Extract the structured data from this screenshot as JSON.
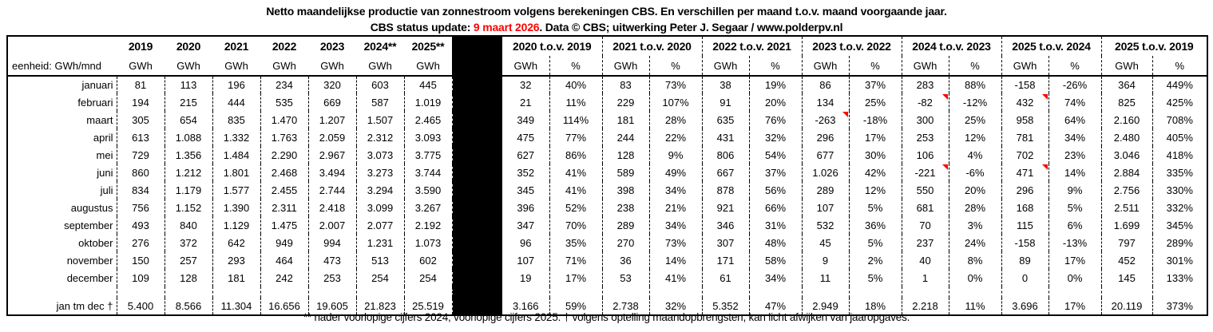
{
  "page": {
    "title_line1": "Netto maandelijkse productie van zonnestroom volgens berekeningen CBS. En verschillen per maand t.o.v. maand voorgaande jaar.",
    "subtitle_prefix": "CBS status update: ",
    "subtitle_date": "9 maart 2026",
    "subtitle_suffix": ". Data © CBS; uitwerking Peter J. Segaar / www.polderpv.nl",
    "footnote": "** nader voorlopige cijfers 2024, voorlopige cijfers 2025.  † volgens optelling maandopbrengsten, kan licht afwijken van jaaropgaves."
  },
  "colors": {
    "text": "#000000",
    "accent_red": "#FF0000",
    "separator_block": "#000000",
    "background": "#FFFFFF"
  },
  "chart_data": {
    "type": "table",
    "title": "Netto maandelijkse productie van zonnestroom volgens berekeningen CBS. En verschillen per maand t.o.v. maand voorgaande jaar.",
    "unit_header": "eenheid: GWh/mnd",
    "unit_gwh": "GWh",
    "unit_pct": "%",
    "year_columns": [
      "2019",
      "2020",
      "2021",
      "2022",
      "2023",
      "2024**",
      "2025**"
    ],
    "diff_columns": [
      "2020 t.o.v. 2019",
      "2021 t.o.v. 2020",
      "2022 t.o.v. 2021",
      "2023 t.o.v. 2022",
      "2024 t.o.v. 2023",
      "2025 t.o.v. 2024",
      "2025 t.o.v. 2019"
    ],
    "rows": [
      {
        "month": "januari",
        "production": [
          "81",
          "113",
          "196",
          "234",
          "320",
          "603",
          "445"
        ],
        "diffs": [
          [
            "32",
            "40%"
          ],
          [
            "83",
            "73%"
          ],
          [
            "38",
            "19%"
          ],
          [
            "86",
            "37%"
          ],
          [
            "283",
            "88%"
          ],
          [
            "-158",
            "-26%"
          ],
          [
            "364",
            "449%"
          ]
        ],
        "comment_flags": []
      },
      {
        "month": "februari",
        "production": [
          "194",
          "215",
          "444",
          "535",
          "669",
          "587",
          "1.019"
        ],
        "diffs": [
          [
            "21",
            "11%"
          ],
          [
            "229",
            "107%"
          ],
          [
            "91",
            "20%"
          ],
          [
            "134",
            "25%"
          ],
          [
            "-82",
            "-12%"
          ],
          [
            "432",
            "74%"
          ],
          [
            "825",
            "425%"
          ]
        ],
        "comment_flags": [
          4,
          5
        ]
      },
      {
        "month": "maart",
        "production": [
          "305",
          "654",
          "835",
          "1.470",
          "1.207",
          "1.507",
          "2.465"
        ],
        "diffs": [
          [
            "349",
            "114%"
          ],
          [
            "181",
            "28%"
          ],
          [
            "635",
            "76%"
          ],
          [
            "-263",
            "-18%"
          ],
          [
            "300",
            "25%"
          ],
          [
            "958",
            "64%"
          ],
          [
            "2.160",
            "708%"
          ]
        ],
        "comment_flags": [
          3
        ]
      },
      {
        "month": "april",
        "production": [
          "613",
          "1.088",
          "1.332",
          "1.763",
          "2.059",
          "2.312",
          "3.093"
        ],
        "diffs": [
          [
            "475",
            "77%"
          ],
          [
            "244",
            "22%"
          ],
          [
            "431",
            "32%"
          ],
          [
            "296",
            "17%"
          ],
          [
            "253",
            "12%"
          ],
          [
            "781",
            "34%"
          ],
          [
            "2.480",
            "405%"
          ]
        ],
        "comment_flags": []
      },
      {
        "month": "mei",
        "production": [
          "729",
          "1.356",
          "1.484",
          "2.290",
          "2.967",
          "3.073",
          "3.775"
        ],
        "diffs": [
          [
            "627",
            "86%"
          ],
          [
            "128",
            "9%"
          ],
          [
            "806",
            "54%"
          ],
          [
            "677",
            "30%"
          ],
          [
            "106",
            "4%"
          ],
          [
            "702",
            "23%"
          ],
          [
            "3.046",
            "418%"
          ]
        ],
        "comment_flags": []
      },
      {
        "month": "juni",
        "production": [
          "860",
          "1.212",
          "1.801",
          "2.468",
          "3.494",
          "3.273",
          "3.744"
        ],
        "diffs": [
          [
            "352",
            "41%"
          ],
          [
            "589",
            "49%"
          ],
          [
            "667",
            "37%"
          ],
          [
            "1.026",
            "42%"
          ],
          [
            "-221",
            "-6%"
          ],
          [
            "471",
            "14%"
          ],
          [
            "2.884",
            "335%"
          ]
        ],
        "comment_flags": [
          4,
          5
        ]
      },
      {
        "month": "juli",
        "production": [
          "834",
          "1.179",
          "1.577",
          "2.455",
          "2.744",
          "3.294",
          "3.590"
        ],
        "diffs": [
          [
            "345",
            "41%"
          ],
          [
            "398",
            "34%"
          ],
          [
            "878",
            "56%"
          ],
          [
            "289",
            "12%"
          ],
          [
            "550",
            "20%"
          ],
          [
            "296",
            "9%"
          ],
          [
            "2.756",
            "330%"
          ]
        ],
        "comment_flags": []
      },
      {
        "month": "augustus",
        "production": [
          "756",
          "1.152",
          "1.390",
          "2.311",
          "2.418",
          "3.099",
          "3.267"
        ],
        "diffs": [
          [
            "396",
            "52%"
          ],
          [
            "238",
            "21%"
          ],
          [
            "921",
            "66%"
          ],
          [
            "107",
            "5%"
          ],
          [
            "681",
            "28%"
          ],
          [
            "168",
            "5%"
          ],
          [
            "2.511",
            "332%"
          ]
        ],
        "comment_flags": []
      },
      {
        "month": "september",
        "production": [
          "493",
          "840",
          "1.129",
          "1.475",
          "2.007",
          "2.077",
          "2.192"
        ],
        "diffs": [
          [
            "347",
            "70%"
          ],
          [
            "289",
            "34%"
          ],
          [
            "346",
            "31%"
          ],
          [
            "532",
            "36%"
          ],
          [
            "70",
            "3%"
          ],
          [
            "115",
            "6%"
          ],
          [
            "1.699",
            "345%"
          ]
        ],
        "comment_flags": []
      },
      {
        "month": "oktober",
        "production": [
          "276",
          "372",
          "642",
          "949",
          "994",
          "1.231",
          "1.073"
        ],
        "diffs": [
          [
            "96",
            "35%"
          ],
          [
            "270",
            "73%"
          ],
          [
            "307",
            "48%"
          ],
          [
            "45",
            "5%"
          ],
          [
            "237",
            "24%"
          ],
          [
            "-158",
            "-13%"
          ],
          [
            "797",
            "289%"
          ]
        ],
        "comment_flags": []
      },
      {
        "month": "november",
        "production": [
          "150",
          "257",
          "293",
          "464",
          "473",
          "513",
          "602"
        ],
        "diffs": [
          [
            "107",
            "71%"
          ],
          [
            "36",
            "14%"
          ],
          [
            "171",
            "58%"
          ],
          [
            "9",
            "2%"
          ],
          [
            "40",
            "8%"
          ],
          [
            "89",
            "17%"
          ],
          [
            "452",
            "301%"
          ]
        ],
        "comment_flags": []
      },
      {
        "month": "december",
        "production": [
          "109",
          "128",
          "181",
          "242",
          "253",
          "254",
          "254"
        ],
        "diffs": [
          [
            "19",
            "17%"
          ],
          [
            "53",
            "41%"
          ],
          [
            "61",
            "34%"
          ],
          [
            "11",
            "5%"
          ],
          [
            "1",
            "0%"
          ],
          [
            "0",
            "0%"
          ],
          [
            "145",
            "133%"
          ]
        ],
        "comment_flags": []
      }
    ],
    "total": {
      "label": "jan tm dec †",
      "production": [
        "5.400",
        "8.566",
        "11.304",
        "16.656",
        "19.605",
        "21.823",
        "25.519"
      ],
      "diffs": [
        [
          "3.166",
          "59%"
        ],
        [
          "2.738",
          "32%"
        ],
        [
          "5.352",
          "47%"
        ],
        [
          "2.949",
          "18%"
        ],
        [
          "2.218",
          "11%"
        ],
        [
          "3.696",
          "17%"
        ],
        [
          "20.119",
          "373%"
        ]
      ],
      "comment_flags": []
    }
  }
}
